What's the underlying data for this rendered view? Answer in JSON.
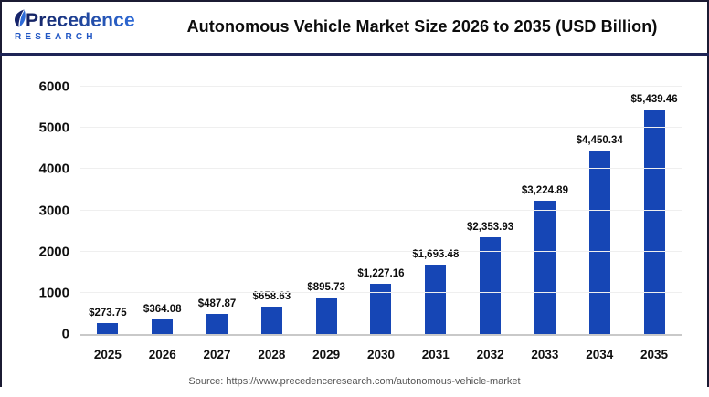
{
  "header": {
    "logo": {
      "wordmark": "Precedence",
      "subtitle": "RESEARCH"
    },
    "title": "Autonomous Vehicle Market Size 2026 to 2035 (USD Billion)"
  },
  "chart_data": {
    "type": "bar",
    "title": "Autonomous Vehicle Market Size 2026 to 2035 (USD Billion)",
    "categories": [
      "2025",
      "2026",
      "2027",
      "2028",
      "2029",
      "2030",
      "2031",
      "2032",
      "2033",
      "2034",
      "2035"
    ],
    "values": [
      273.75,
      364.08,
      487.87,
      658.63,
      895.73,
      1227.16,
      1693.48,
      2353.93,
      3224.89,
      4450.34,
      5439.46
    ],
    "bar_labels": [
      "$273.75",
      "$364.08",
      "$487.87",
      "$658.63",
      "$895.73",
      "$1,227.16",
      "$1,693.48",
      "$2,353.93",
      "$3,224.89",
      "$4,450.34",
      "$5,439.46"
    ],
    "xlabel": "",
    "ylabel": "",
    "ylim": [
      0,
      6000
    ],
    "yticks": [
      0,
      1000,
      2000,
      3000,
      4000,
      5000,
      6000
    ],
    "grid": true,
    "legend": false,
    "bar_color": "#1646b5"
  },
  "footer": {
    "source": "Source: https://www.precedenceresearch.com/autonomous-vehicle-market"
  },
  "colors": {
    "bar": "#1646b5",
    "header_rule": "#1e2456",
    "frame_border": "#1b1b33",
    "gridline": "#efefef",
    "baseline": "#c9c9c9",
    "logo_dark": "#131f5e",
    "logo_blue": "#2e6bd8",
    "source_text": "#555555"
  }
}
